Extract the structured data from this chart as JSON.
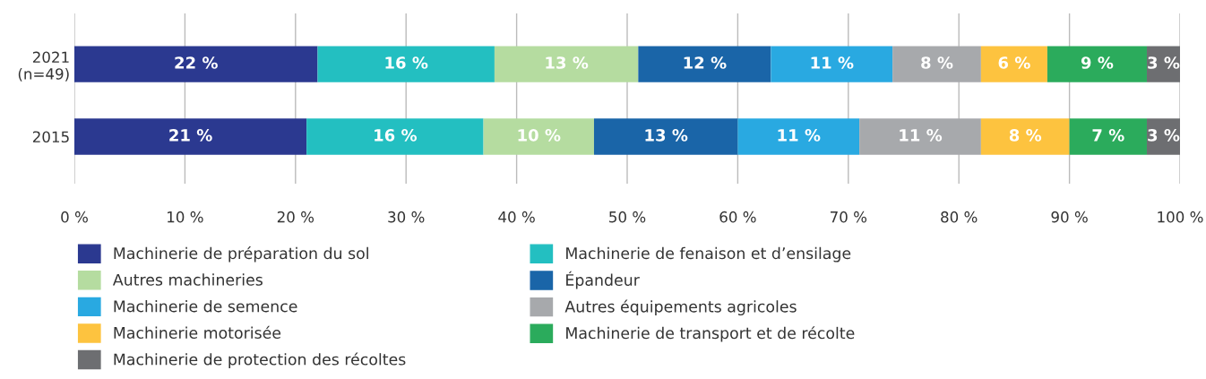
{
  "chart_data": {
    "type": "bar",
    "orientation": "horizontal",
    "stacked": true,
    "categories": [
      "2021\n(n=49)",
      "2015"
    ],
    "xlim": [
      0,
      100
    ],
    "xticks": [
      {
        "value": 0,
        "label": "0 %"
      },
      {
        "value": 10,
        "label": "10 %"
      },
      {
        "value": 20,
        "label": "20 %"
      },
      {
        "value": 30,
        "label": "30 %"
      },
      {
        "value": 40,
        "label": "40 %"
      },
      {
        "value": 50,
        "label": "50 %"
      },
      {
        "value": 60,
        "label": "60 %"
      },
      {
        "value": 70,
        "label": "70 %"
      },
      {
        "value": 80,
        "label": "80 %"
      },
      {
        "value": 90,
        "label": "90 %"
      },
      {
        "value": 100,
        "label": "100 %"
      }
    ],
    "grid": "x",
    "legend": "bottom",
    "series": [
      {
        "name": "Machinerie de préparation du sol",
        "color": "#2b3990",
        "values": [
          22,
          21
        ],
        "value_labels": [
          "22 %",
          "21 %"
        ]
      },
      {
        "name": "Machinerie de fenaison et d’ensilage",
        "color": "#23bfc1",
        "values": [
          16,
          16
        ],
        "value_labels": [
          "16 %",
          "16 %"
        ]
      },
      {
        "name": "Autres machineries",
        "color": "#b5dca0",
        "values": [
          13,
          10
        ],
        "value_labels": [
          "13 %",
          "10 %"
        ]
      },
      {
        "name": "Épandeur",
        "color": "#1a65a8",
        "values": [
          12,
          13
        ],
        "value_labels": [
          "12 %",
          "13 %"
        ]
      },
      {
        "name": "Machinerie de semence",
        "color": "#29a9e1",
        "values": [
          11,
          11
        ],
        "value_labels": [
          "11 %",
          "11 %"
        ]
      },
      {
        "name": "Autres équipements agricoles",
        "color": "#a7a9ac",
        "values": [
          8,
          11
        ],
        "value_labels": [
          "8 %",
          "11 %"
        ]
      },
      {
        "name": "Machinerie motorisée",
        "color": "#fdc33f",
        "values": [
          6,
          8
        ],
        "value_labels": [
          "6 %",
          "8 %"
        ]
      },
      {
        "name": "Machinerie de transport et de récolte",
        "color": "#2bab5c",
        "values": [
          9,
          7
        ],
        "value_labels": [
          "9 %",
          "7 %"
        ]
      },
      {
        "name": "Machinerie de protection des récoltes",
        "color": "#6d6e71",
        "values": [
          3,
          3
        ],
        "value_labels": [
          "3 %",
          "3 %"
        ]
      }
    ]
  }
}
